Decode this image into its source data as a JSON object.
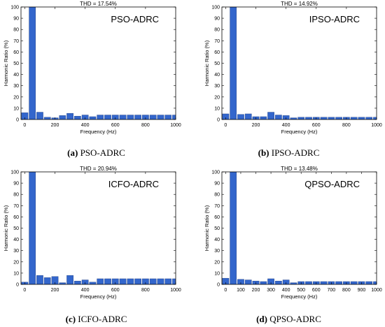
{
  "charts_common": {
    "xlabel": "Frequency (Hz)",
    "ylabel": "Harmonic Ratio (%)",
    "bar_color": "#3366cc",
    "ylim": [
      0,
      100
    ],
    "yticks": [
      "0",
      "10",
      "20",
      "30",
      "40",
      "50",
      "60",
      "70",
      "80",
      "90",
      "100"
    ]
  },
  "chart_data": [
    {
      "type": "bar",
      "label_tag": "(a)",
      "caption": "PSO-ADRC",
      "title": "THD = 17.54%",
      "legend_text": "PSO-ADRC",
      "xlim": [
        -25,
        1000
      ],
      "xticks": [
        "0",
        "200",
        "400",
        "600",
        "800",
        "1000"
      ],
      "x": [
        0,
        50,
        100,
        150,
        200,
        250,
        300,
        350,
        400,
        450,
        500,
        550,
        600,
        650,
        700,
        750,
        800,
        850,
        900,
        950,
        1000
      ],
      "values": [
        6,
        100,
        6.5,
        2,
        1.5,
        3.5,
        5.5,
        3,
        4,
        2.5,
        4,
        4,
        4,
        4,
        4,
        4,
        4,
        4,
        4,
        4,
        4
      ]
    },
    {
      "type": "bar",
      "label_tag": "(b)",
      "caption": "IPSO-ADRC",
      "title": "THD = 14.92%",
      "legend_text": "IPSO-ADRC",
      "xlim": [
        -25,
        1000
      ],
      "xticks": [
        "0",
        "200",
        "400",
        "600",
        "800",
        "1000"
      ],
      "x": [
        0,
        50,
        100,
        150,
        200,
        250,
        300,
        350,
        400,
        450,
        500,
        550,
        600,
        650,
        700,
        750,
        800,
        850,
        900,
        950,
        1000
      ],
      "values": [
        5,
        100,
        4.5,
        5,
        2.5,
        2.5,
        6.5,
        4,
        3.5,
        1.5,
        2,
        2,
        2,
        2,
        2,
        2,
        2,
        2,
        2,
        2,
        2
      ]
    },
    {
      "type": "bar",
      "label_tag": "(c)",
      "caption": "ICFO-ADRC",
      "title": "THD = 20.94%",
      "legend_text": "ICFO-ADRC",
      "xlim": [
        -25,
        1000
      ],
      "xticks": [
        "0",
        "200",
        "400",
        "600",
        "800",
        "1000"
      ],
      "x": [
        0,
        50,
        100,
        150,
        200,
        250,
        300,
        350,
        400,
        450,
        500,
        550,
        600,
        650,
        700,
        750,
        800,
        850,
        900,
        950,
        1000
      ],
      "values": [
        2,
        100,
        8,
        6,
        7,
        1.5,
        8,
        3,
        4,
        2,
        5,
        5,
        5,
        5,
        5,
        5,
        5,
        5,
        5,
        5,
        5
      ]
    },
    {
      "type": "bar",
      "label_tag": "(d)",
      "caption": "QPSO-ADRC",
      "title": "THD = 13.48%",
      "legend_text": "QPSO-ADRC",
      "xlim": [
        -25,
        1000
      ],
      "xticks": [
        "0",
        "100",
        "200",
        "300",
        "400",
        "500",
        "600",
        "700",
        "800",
        "900",
        "1000"
      ],
      "x": [
        0,
        50,
        100,
        150,
        200,
        250,
        300,
        350,
        400,
        450,
        500,
        550,
        600,
        650,
        700,
        750,
        800,
        850,
        900,
        950,
        1000
      ],
      "values": [
        5.5,
        100,
        4.5,
        4,
        3,
        2.5,
        5,
        3,
        4,
        1.5,
        2.5,
        2.5,
        2.5,
        2.5,
        2.5,
        2.5,
        2.5,
        2.5,
        2.5,
        2.5,
        2.5
      ]
    }
  ]
}
